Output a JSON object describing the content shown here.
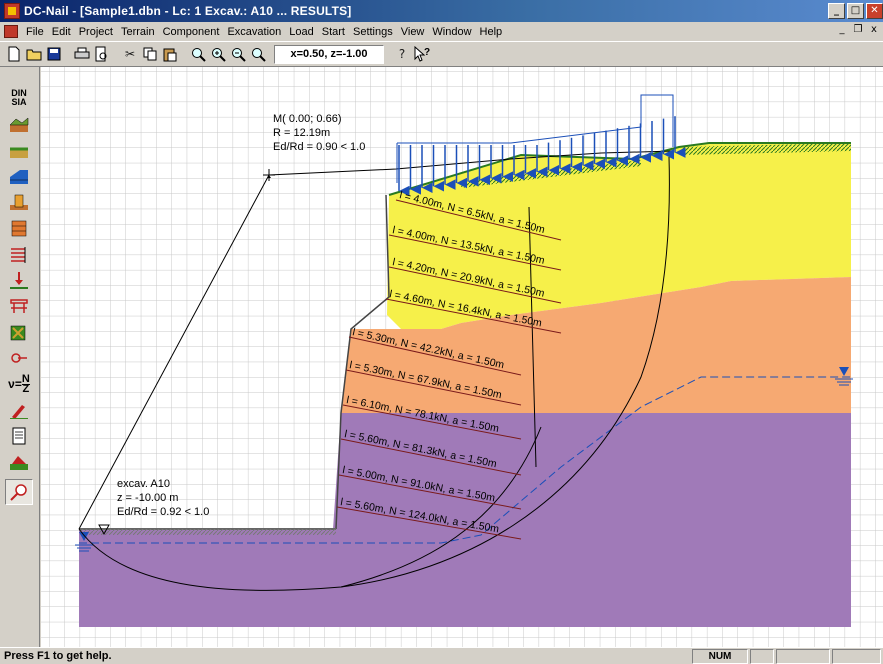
{
  "window": {
    "title": "DC-Nail - [Sample1.dbn -  Lc: 1 Excav.: A10 ... RESULTS]",
    "minimize": "_",
    "maximize": "□",
    "close": "✕"
  },
  "menu": {
    "items": [
      "File",
      "Edit",
      "Project",
      "Terrain",
      "Component",
      "Excavation",
      "Load",
      "Start",
      "Settings",
      "View",
      "Window",
      "Help"
    ],
    "mdi_min": "_",
    "mdi_restore": "❐",
    "mdi_close": "x"
  },
  "toolbar": {
    "coord": "x=0.50, z=-1.00"
  },
  "lefttools": {
    "din_label_1": "DIN",
    "din_label_2": "SIA",
    "nz_label": "N",
    "nz_sub": "Z"
  },
  "canvas": {
    "top_result": {
      "m": "M( 0.00; 0.66)",
      "r": "R = 12.19m",
      "ed": "Ed/Rd =  0.90 < 1.0"
    },
    "bottom_result": {
      "excav": "excav. A10",
      "z": "z  = -10.00 m",
      "ed": "Ed/Rd =  0.92 < 1.0"
    },
    "nails": [
      "l = 4.00m, N = 6.5kN, a = 1.50m",
      "l = 4.00m, N = 13.5kN, a = 1.50m",
      "l = 4.20m, N = 20.9kN, a = 1.50m",
      "l = 4.60m, N = 16.4kN, a = 1.50m",
      "l = 5.30m, N = 42.2kN, a = 1.50m",
      "l = 5.30m, N = 67.9kN, a = 1.50m",
      "l = 6.10m, N = 78.1kN, a = 1.50m",
      "l = 5.60m, N = 81.3kN, a = 1.50m",
      "l = 5.00m, N = 91.0kN, a = 1.50m",
      "l = 5.60m, N = 124.0kN, a = 1.50m"
    ],
    "colors": {
      "yellow_layer": "#f6f04a",
      "orange_layer": "#f6a972",
      "purple_layer": "#a07ab8",
      "load_arrows": "#1b4fb8",
      "nail_lines": "#7a1a1a",
      "grid": "#c8c8c8"
    }
  },
  "status": {
    "help": "Press F1 to get help.",
    "num": "NUM"
  }
}
